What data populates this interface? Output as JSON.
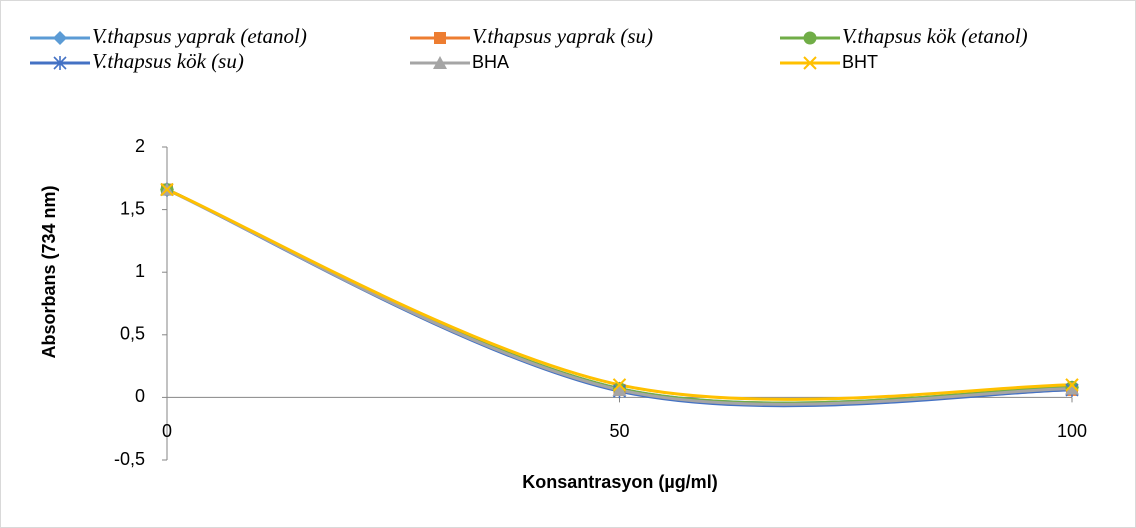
{
  "chart_data": {
    "type": "line",
    "x_label": "Konsantrasyon (µg/ml)",
    "y_label": "Absorbans (734 nm)",
    "x": [
      0,
      50,
      100
    ],
    "xlim": [
      0,
      100
    ],
    "xticks": [
      0,
      50,
      100
    ],
    "ylim": [
      -0.5,
      2
    ],
    "yticks": [
      {
        "value": -0.5,
        "label": "-0,5"
      },
      0,
      {
        "value": 0.5,
        "label": "0,5"
      },
      1,
      {
        "value": 1.5,
        "label": "1,5"
      },
      2
    ],
    "smooth": true,
    "series": [
      {
        "name": "V.thapsus yaprak (etanol)",
        "color": "#5b9bd5",
        "marker": "diamond",
        "values": [
          1.66,
          0.07,
          0.08
        ]
      },
      {
        "name": "V.thapsus yaprak (su)",
        "color": "#ed7d31",
        "marker": "square",
        "values": [
          1.66,
          0.06,
          0.06
        ]
      },
      {
        "name": "V.thapsus kök (etanol)",
        "color": "#70ad47",
        "marker": "circle",
        "values": [
          1.66,
          0.07,
          0.08
        ]
      },
      {
        "name": "V.thapsus kök (su)",
        "color": "#4472c4",
        "marker": "asterisk",
        "values": [
          1.66,
          0.05,
          0.06
        ]
      },
      {
        "name": "BHA",
        "color": "#a5a5a5",
        "marker": "triangle",
        "values": [
          1.66,
          0.06,
          0.07
        ]
      },
      {
        "name": "BHT",
        "color": "#ffc000",
        "marker": "x",
        "values": [
          1.66,
          0.1,
          0.1
        ]
      }
    ]
  }
}
